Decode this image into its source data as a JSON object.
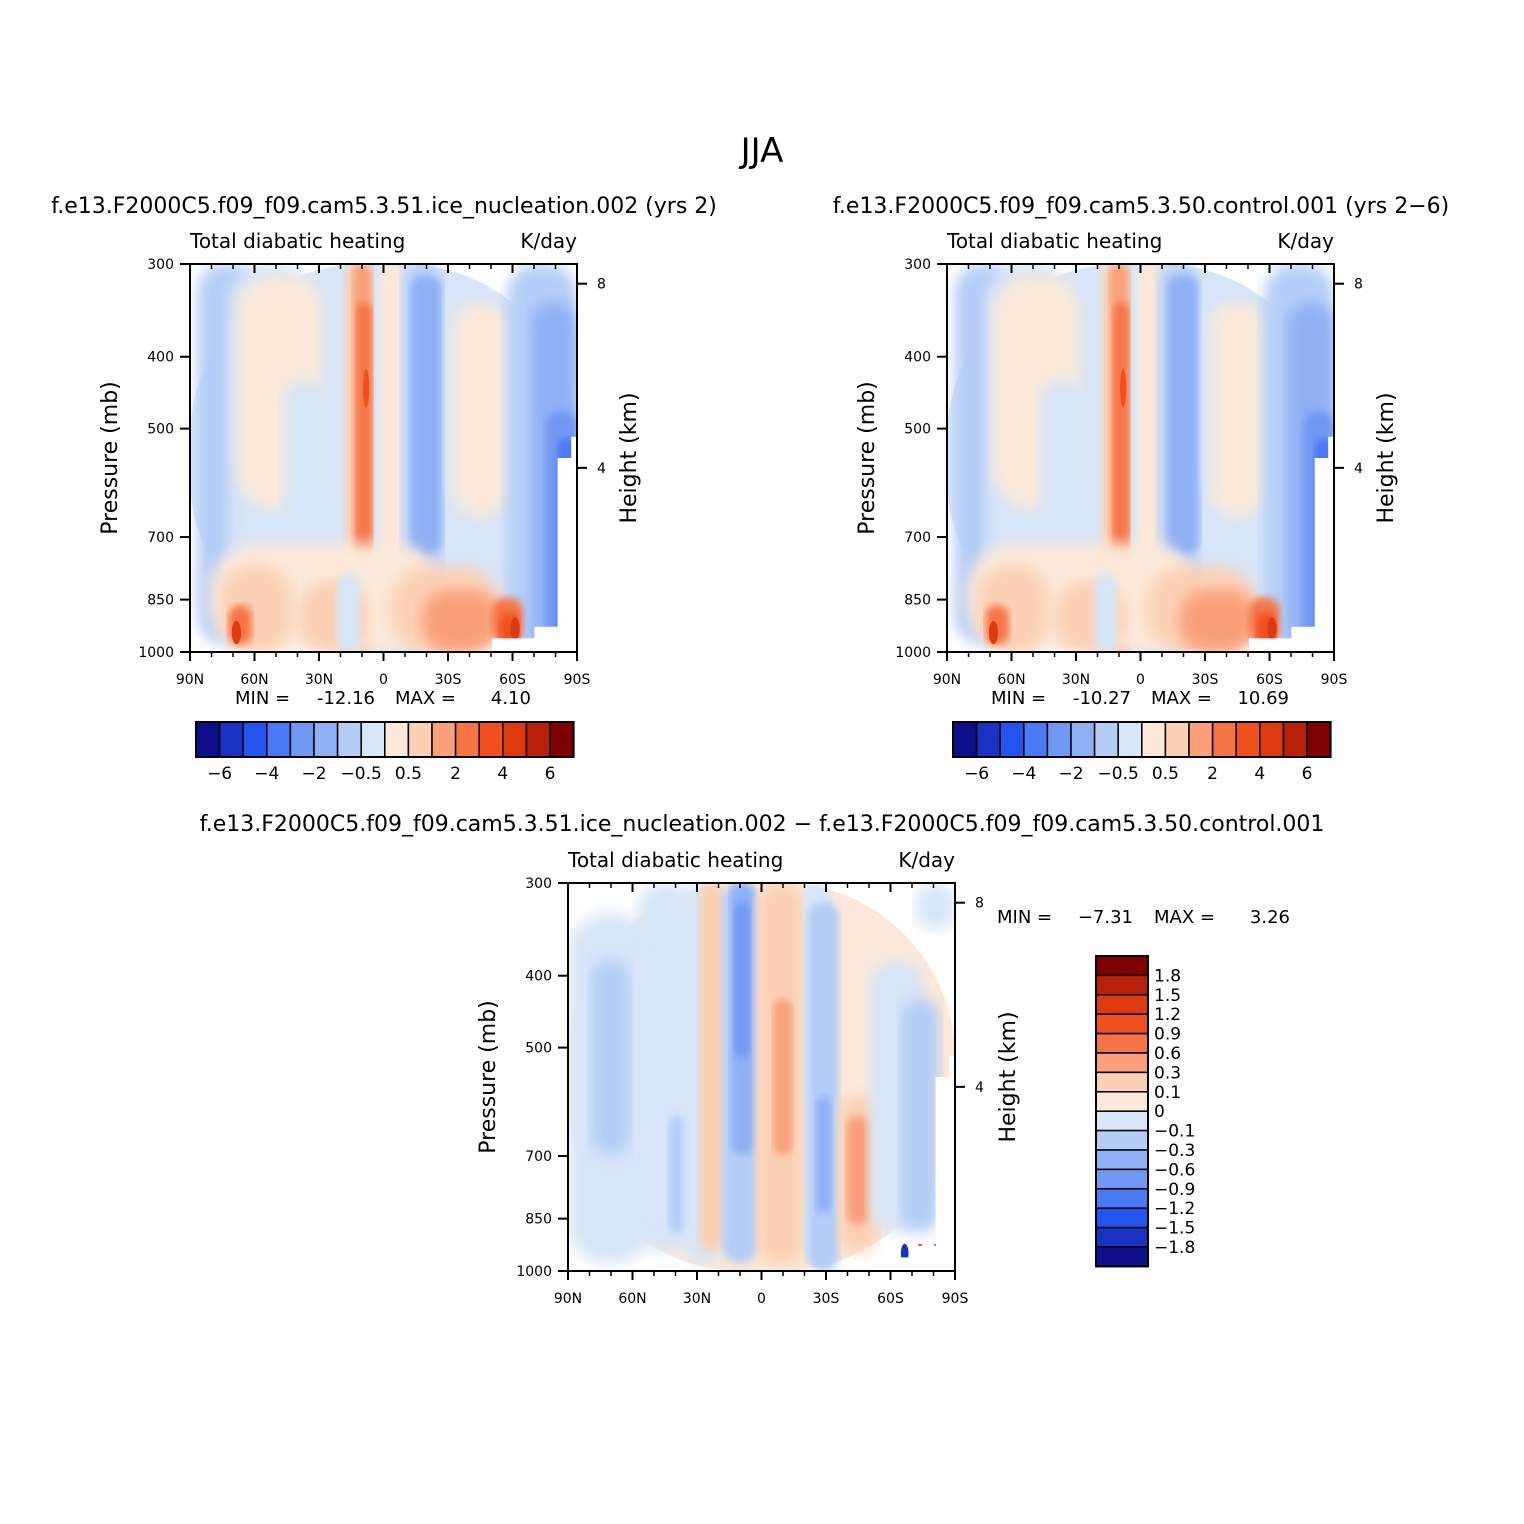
{
  "title": "JJA",
  "colors": {
    "warm": [
      "#fbe8d8",
      "#fcd0b4",
      "#f9a07a",
      "#f57446",
      "#f0501e",
      "#dd3a0f",
      "#b8200a",
      "#7f0000"
    ],
    "cool": [
      "#d7e6f8",
      "#b5cdf7",
      "#8fb0f5",
      "#6f98f2",
      "#4a79f5",
      "#2454ef",
      "#1a32c4",
      "#0c0f89"
    ]
  },
  "chart_data": [
    {
      "id": "test",
      "type": "heatmap",
      "case_title": "f.e13.F2000C5.f09_f09.cam5.3.51.ice_nucleation.002  (yrs 2)",
      "left_label": "Total diabatic heating",
      "right_label": "K/day",
      "ylabel": "Pressure (mb)",
      "y2label": "Height (km)",
      "x_ticks": [
        "90N",
        "60N",
        "30N",
        "0",
        "30S",
        "60S",
        "90S"
      ],
      "y_ticks": [
        "300",
        "400",
        "500",
        "700",
        "850",
        "1000"
      ],
      "y2_ticks": [
        "8",
        "4"
      ],
      "stat": {
        "min_label": "MIN =",
        "min": "-12.16",
        "max_label": "MAX =",
        "max": "4.10"
      },
      "colorbar_labels": [
        "−6",
        "−4",
        "−2",
        "−0.5",
        "0.5",
        "2",
        "4",
        "6"
      ]
    },
    {
      "id": "control",
      "type": "heatmap",
      "case_title": "f.e13.F2000C5.f09_f09.cam5.3.50.control.001  (yrs 2−6)",
      "left_label": "Total diabatic heating",
      "right_label": "K/day",
      "ylabel": "Pressure (mb)",
      "y2label": "Height (km)",
      "x_ticks": [
        "90N",
        "60N",
        "30N",
        "0",
        "30S",
        "60S",
        "90S"
      ],
      "y_ticks": [
        "300",
        "400",
        "500",
        "700",
        "850",
        "1000"
      ],
      "y2_ticks": [
        "8",
        "4"
      ],
      "stat": {
        "min_label": "MIN =",
        "min": "-10.27",
        "max_label": "MAX =",
        "max": "10.69"
      },
      "colorbar_labels": [
        "−6",
        "−4",
        "−2",
        "−0.5",
        "0.5",
        "2",
        "4",
        "6"
      ]
    },
    {
      "id": "diff",
      "type": "heatmap",
      "case_title": "f.e13.F2000C5.f09_f09.cam5.3.51.ice_nucleation.002 − f.e13.F2000C5.f09_f09.cam5.3.50.control.001",
      "left_label": "Total diabatic heating",
      "right_label": "K/day",
      "ylabel": "Pressure (mb)",
      "y2label": "Height (km)",
      "x_ticks": [
        "90N",
        "60N",
        "30N",
        "0",
        "30S",
        "60S",
        "90S"
      ],
      "y_ticks": [
        "300",
        "400",
        "500",
        "700",
        "850",
        "1000"
      ],
      "y2_ticks": [
        "8",
        "4"
      ],
      "stat": {
        "min_label": "MIN =",
        "min": "−7.31",
        "max_label": "MAX =",
        "max": "3.26"
      },
      "colorbar_labels": [
        "1.8",
        "1.5",
        "1.2",
        "0.9",
        "0.6",
        "0.3",
        "0.1",
        "0",
        "−0.1",
        "−0.3",
        "−0.6",
        "−0.9",
        "−1.2",
        "−1.5",
        "−1.8"
      ]
    }
  ]
}
